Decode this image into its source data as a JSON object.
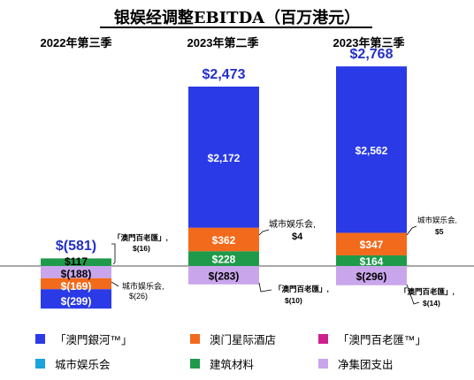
{
  "chart_data": {
    "type": "bar",
    "title": "银娱经调整EBITDA（百万港元）",
    "colors": {
      "galaxy_macau": "#2a3ae6",
      "star_world": "#f26a1b",
      "broadway": "#cf1f8f",
      "city_clubs": "#1aa3dd",
      "construction": "#1f9a4b",
      "net_corporate": "#c9a6ec",
      "total_label": "#2430c8"
    },
    "categories": [
      "2022年第三季",
      "2023年第二季",
      "2023年第三季"
    ],
    "series": [
      {
        "key": "galaxy_macau",
        "name": "「澳門銀河™」",
        "values": [
          -299,
          2172,
          2562
        ],
        "labels": [
          "$(299)",
          "$2,172",
          "$2,562"
        ]
      },
      {
        "key": "star_world",
        "name": "澳门星际酒店",
        "values": [
          -169,
          362,
          347
        ],
        "labels": [
          "$(169)",
          "$362",
          "$347"
        ]
      },
      {
        "key": "broadway",
        "name": "「澳門百老匯™」",
        "values": [
          -16,
          -10,
          -14
        ]
      },
      {
        "key": "city_clubs",
        "name": "城市娱乐会",
        "values": [
          -26,
          4,
          5
        ]
      },
      {
        "key": "construction",
        "name": "建筑材料",
        "values": [
          117,
          228,
          164
        ],
        "labels": [
          "$117",
          "$228",
          "$164"
        ]
      },
      {
        "key": "net_corporate",
        "name": "净集团支出",
        "values": [
          -188,
          -283,
          -296
        ],
        "labels": [
          "$(188)",
          "$(283)",
          "$(296)"
        ]
      }
    ],
    "totals": [
      -581,
      2473,
      2768
    ],
    "total_labels": [
      "$(581)",
      "$2,473",
      "$2,768"
    ],
    "annotations": [
      [
        "「澳門百老匯」,",
        "$(16)",
        "城市娱乐会,",
        "$(26)"
      ],
      [
        "城市娱乐会,",
        "$4",
        "「澳門百老匯」,",
        "$(10)"
      ],
      [
        "城市娱乐会,",
        "$5",
        "「澳門百老匯」,",
        "$(14)"
      ]
    ],
    "grid": false,
    "legend_position": "bottom"
  }
}
